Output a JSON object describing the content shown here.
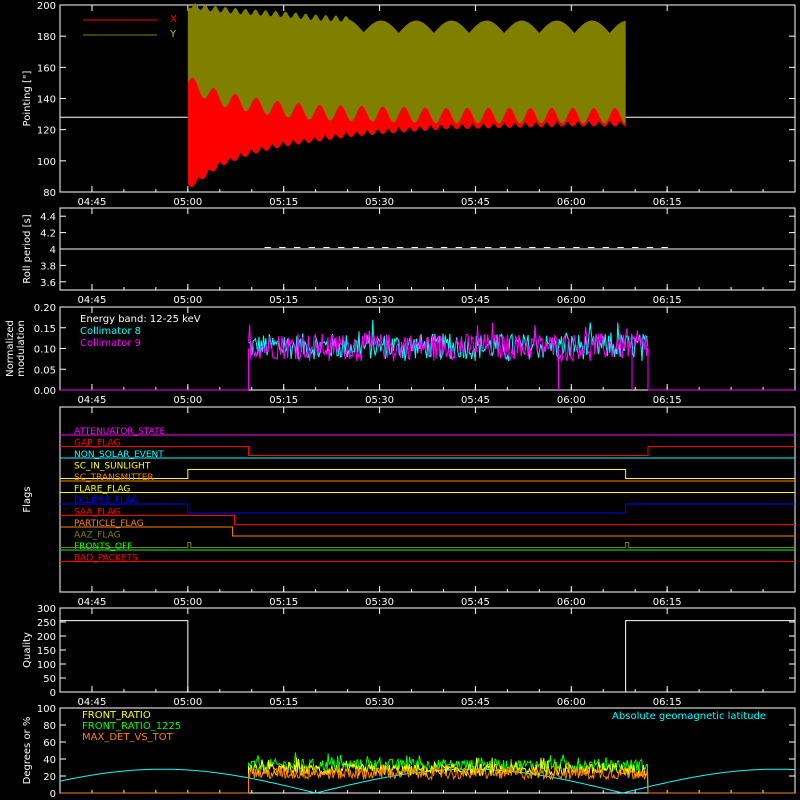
{
  "chart_data": [
    {
      "type": "line",
      "panel": "pointing",
      "ylabel": "Pointing [\"]",
      "ylim": [
        80,
        200
      ],
      "yticks": [
        80,
        100,
        120,
        140,
        160,
        180,
        200
      ],
      "xlim_minutes": [
        -20,
        95
      ],
      "xtick_labels": [
        "04:45",
        "05:00",
        "05:15",
        "05:30",
        "05:45",
        "06:00",
        "06:15"
      ],
      "xtick_minutes": [
        -15,
        0,
        15,
        30,
        45,
        60,
        75
      ],
      "legend_position": "top-left",
      "series": [
        {
          "name": "X",
          "color": "#ff0000",
          "baseline": 128,
          "active_minutes": [
            0,
            68.5
          ],
          "envelope_upper": [
            [
              0,
              150
            ],
            [
              5,
              145
            ],
            [
              10,
              140
            ],
            [
              15,
              138
            ],
            [
              20,
              136
            ],
            [
              25,
              134
            ],
            [
              30,
              133
            ],
            [
              40,
              132
            ],
            [
              50,
              132
            ],
            [
              60,
              132
            ],
            [
              68.5,
              132
            ]
          ],
          "envelope_lower": [
            [
              0,
              85
            ],
            [
              5,
              100
            ],
            [
              10,
              108
            ],
            [
              15,
              113
            ],
            [
              20,
              116
            ],
            [
              25,
              119
            ],
            [
              30,
              121
            ],
            [
              40,
              124
            ],
            [
              50,
              125
            ],
            [
              60,
              126
            ],
            [
              68.5,
              126
            ]
          ],
          "top_curve": [
            [
              0,
              160
            ],
            [
              15,
              180
            ],
            [
              30,
              190
            ],
            [
              45,
              190
            ],
            [
              60,
              190
            ],
            [
              68.5,
              190
            ]
          ]
        },
        {
          "name": "Y",
          "color": "#808000",
          "baseline": 128,
          "active_minutes": [
            0,
            68.5
          ],
          "envelope_upper": [
            [
              0,
              200
            ],
            [
              3,
              198
            ],
            [
              8,
              196
            ],
            [
              15,
              194
            ],
            [
              20,
              192
            ],
            [
              30,
              190
            ],
            [
              40,
              190
            ],
            [
              50,
              190
            ],
            [
              60,
              190
            ],
            [
              68.5,
              190
            ]
          ],
          "envelope_lower": [
            [
              0,
              150
            ],
            [
              5,
              140
            ],
            [
              10,
              136
            ],
            [
              15,
              133
            ],
            [
              20,
              131
            ],
            [
              30,
              130
            ],
            [
              40,
              129
            ],
            [
              50,
              129
            ],
            [
              60,
              129
            ],
            [
              68.5,
              129
            ]
          ]
        }
      ]
    },
    {
      "type": "line",
      "panel": "roll_period",
      "ylabel": "Roll period [s]",
      "ylim": [
        3.5,
        4.5
      ],
      "yticks": [
        3.6,
        3.8,
        4.0,
        4.2,
        4.4
      ],
      "xtick_labels": [
        "04:45",
        "05:00",
        "05:15",
        "05:30",
        "05:45",
        "06:00",
        "06:15"
      ],
      "series": [
        {
          "name": "",
          "color": "#ffffff",
          "value": 4.0
        }
      ]
    },
    {
      "type": "line",
      "panel": "modulation",
      "ylabel": "Normalized modulation",
      "ylim": [
        0,
        0.2
      ],
      "yticks": [
        0.0,
        0.05,
        0.1,
        0.15,
        0.2
      ],
      "ytick_labels": [
        "0.00",
        "0.05",
        "0.10",
        "0.15",
        "0.20"
      ],
      "xtick_labels": [
        "04:45",
        "05:00",
        "05:15",
        "05:30",
        "05:45",
        "06:00",
        "06:15"
      ],
      "annotation": "Energy band: 12-25 keV",
      "series": [
        {
          "name": "Collimator 8",
          "color": "#00ffff",
          "active_minutes": [
            9.5,
            72
          ],
          "mean": 0.105,
          "spread": 0.045
        },
        {
          "name": "Collimator 9",
          "color": "#ff00ff",
          "active_minutes": [
            9.5,
            72
          ],
          "mean": 0.105,
          "spread": 0.045
        }
      ]
    },
    {
      "type": "table",
      "panel": "flags",
      "ylabel": "Flags",
      "xtick_labels": [
        "04:45",
        "05:00",
        "05:15",
        "05:30",
        "05:45",
        "06:00",
        "06:15"
      ],
      "flags": [
        {
          "name": "ATTENUATOR_STATE",
          "color": "#ff00ff",
          "transitions": []
        },
        {
          "name": "GAP_FLAG",
          "color": "#ff0000",
          "transitions": [
            [
              9.5,
              "low"
            ],
            [
              72,
              "high"
            ]
          ]
        },
        {
          "name": "NON_SOLAR_EVENT",
          "color": "#00ffff",
          "transitions": []
        },
        {
          "name": "SC_IN_SUNLIGHT",
          "color": "#ffff00",
          "transitions": [
            [
              0,
              "high"
            ],
            [
              68.5,
              "low"
            ]
          ]
        },
        {
          "name": "SC_TRANSMITTER",
          "color": "#ff8000",
          "transitions": []
        },
        {
          "name": "FLARE_FLAG",
          "color": "#ffff00",
          "transitions": []
        },
        {
          "name": "ECLIPSE_FLAG",
          "color": "#0000ff",
          "transitions": [
            [
              0,
              "low"
            ],
            [
              68.5,
              "high"
            ]
          ]
        },
        {
          "name": "SAA_FLAG",
          "color": "#ff0000",
          "transitions": [
            [
              7.3,
              "low"
            ]
          ]
        },
        {
          "name": "PARTICLE_FLAG",
          "color": "#ff8000",
          "transitions": [
            [
              7,
              "low"
            ]
          ]
        },
        {
          "name": "AAZ_FLAG",
          "color": "#808000",
          "spikes": [
            0,
            68.5
          ]
        },
        {
          "name": "FRONTS_OFF",
          "color": "#00ff00",
          "transitions": []
        },
        {
          "name": "BAD_PACKETS",
          "color": "#ff0000",
          "transitions": []
        }
      ]
    },
    {
      "type": "line",
      "panel": "quality",
      "ylabel": "Quality",
      "ylim": [
        0,
        300
      ],
      "yticks": [
        0,
        50,
        100,
        150,
        200,
        250,
        300
      ],
      "xtick_labels": [
        "04:45",
        "05:00",
        "05:15",
        "05:30",
        "05:45",
        "06:00",
        "06:15"
      ],
      "series": [
        {
          "name": "",
          "color": "#ffffff",
          "high_value": 255,
          "zero_interval_minutes": [
            0,
            68.5
          ]
        }
      ]
    },
    {
      "type": "line",
      "panel": "ratios",
      "ylabel": "Degrees or %",
      "ylim": [
        0,
        100
      ],
      "yticks": [
        0,
        20,
        40,
        60,
        80,
        100
      ],
      "annotation": "Absolute geomagnetic latitude",
      "series": [
        {
          "name": "FRONT_RATIO",
          "color": "#ffff00",
          "active_minutes": [
            9.5,
            72
          ],
          "mean": 27
        },
        {
          "name": "FRONT_RATIO_1225",
          "color": "#00ff00",
          "active_minutes": [
            9.5,
            72
          ],
          "mean": 33
        },
        {
          "name": "MAX_DET_VS_TOT",
          "color": "#ff8000",
          "active_minutes": [
            9.5,
            72
          ],
          "mean": 23
        },
        {
          "name": "Absolute geomagnetic latitude",
          "color": "#00ffff",
          "amplitude": 28
        }
      ]
    }
  ]
}
